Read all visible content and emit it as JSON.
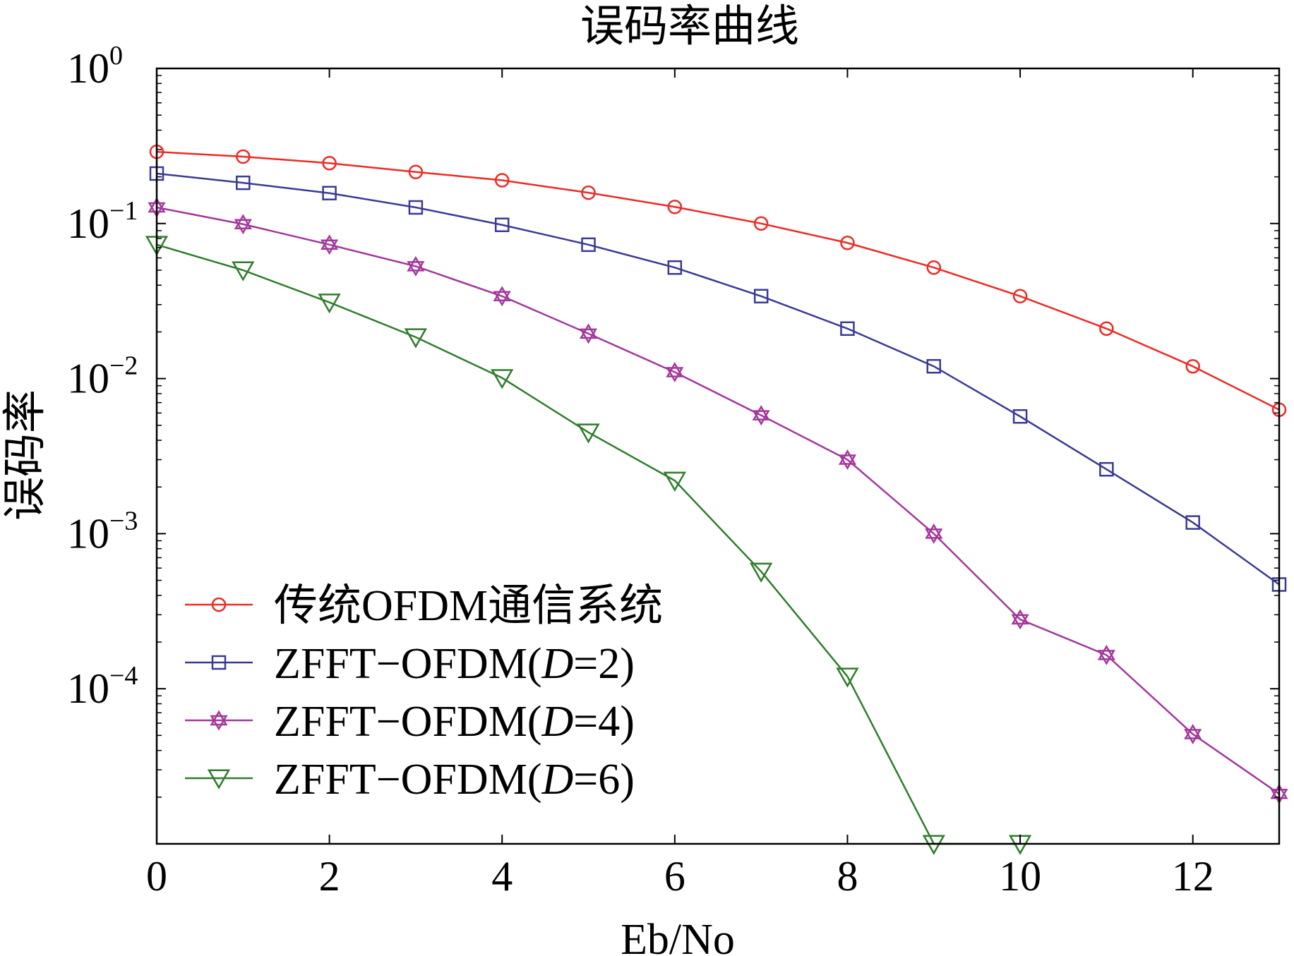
{
  "chart_data": {
    "type": "line",
    "title": "误码率曲线",
    "xlabel": "Eb/No",
    "ylabel": "误码率",
    "yscale": "log",
    "xlim": [
      0,
      13
    ],
    "ylim": [
      1e-05,
      1
    ],
    "xticks": [
      0,
      2,
      4,
      6,
      8,
      10,
      12
    ],
    "yticks": [
      {
        "base": "10",
        "exp": "0"
      },
      {
        "base": "10",
        "exp": "−1"
      },
      {
        "base": "10",
        "exp": "−2"
      },
      {
        "base": "10",
        "exp": "−3"
      },
      {
        "base": "10",
        "exp": "−4"
      }
    ],
    "grid": false,
    "legend_position": "bottom-left",
    "x": [
      0,
      1,
      2,
      3,
      4,
      5,
      6,
      7,
      8,
      9,
      10,
      11,
      12,
      13
    ],
    "series": [
      {
        "name_parts": [
          "传统OFDM通信系统"
        ],
        "color": "#ee2a24",
        "marker": "circle",
        "values": [
          0.29,
          0.27,
          0.245,
          0.215,
          0.19,
          0.158,
          0.128,
          0.1,
          0.075,
          0.052,
          0.034,
          0.021,
          0.012,
          0.0063
        ]
      },
      {
        "name_parts": [
          "ZFFT−OFDM(",
          "D",
          "=2)"
        ],
        "color": "#3a3a96",
        "marker": "square",
        "values": [
          0.21,
          0.183,
          0.157,
          0.127,
          0.098,
          0.073,
          0.052,
          0.034,
          0.021,
          0.012,
          0.0057,
          0.0026,
          0.00118,
          0.00047
        ]
      },
      {
        "name_parts": [
          "ZFFT−OFDM(",
          "D",
          "=4)"
        ],
        "color": "#a3379c",
        "marker": "star",
        "values": [
          0.127,
          0.099,
          0.073,
          0.053,
          0.034,
          0.0195,
          0.011,
          0.0058,
          0.003,
          0.001,
          0.00028,
          0.000165,
          5.1e-05,
          2.1e-05
        ]
      },
      {
        "name_parts": [
          "ZFFT−OFDM(",
          "D",
          "=6)"
        ],
        "color": "#2f7d2c",
        "marker": "triangle-down",
        "values": [
          0.073,
          0.05,
          0.031,
          0.0185,
          0.0101,
          0.0045,
          0.0022,
          0.00057,
          0.00012,
          1e-05,
          1e-05,
          null,
          null,
          null
        ]
      }
    ]
  }
}
